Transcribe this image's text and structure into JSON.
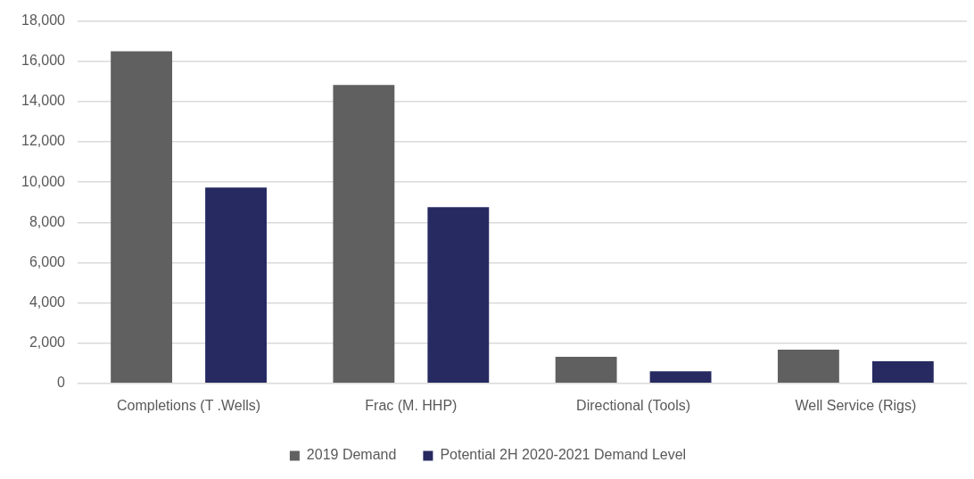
{
  "chart_data": {
    "type": "bar",
    "categories": [
      "Completions (T .Wells)",
      "Frac (M. HHP)",
      "Directional (Tools)",
      "Well Service (Rigs)"
    ],
    "series": [
      {
        "name": "2019 Demand",
        "color": "#606060",
        "values": [
          16500,
          14830,
          1320,
          1670
        ]
      },
      {
        "name": "Potential 2H 2020-2021 Demand Level",
        "color": "#262a60",
        "values": [
          9730,
          8750,
          600,
          1100
        ]
      }
    ],
    "ylim": [
      0,
      18000
    ],
    "yticks": [
      0,
      {
        "value": 2000,
        "label": "2,000"
      },
      {
        "value": 4000,
        "label": "4,000"
      },
      {
        "value": 6000,
        "label": "6,000"
      },
      {
        "value": 8000,
        "label": "8,000"
      },
      {
        "value": 10000,
        "label": "10,000"
      },
      {
        "value": 12000,
        "label": "12,000"
      },
      {
        "value": 14000,
        "label": "14,000"
      },
      {
        "value": 16000,
        "label": "16,000"
      },
      {
        "value": 18000,
        "label": "18,000"
      }
    ],
    "grid": "y",
    "legend": "bottom"
  }
}
